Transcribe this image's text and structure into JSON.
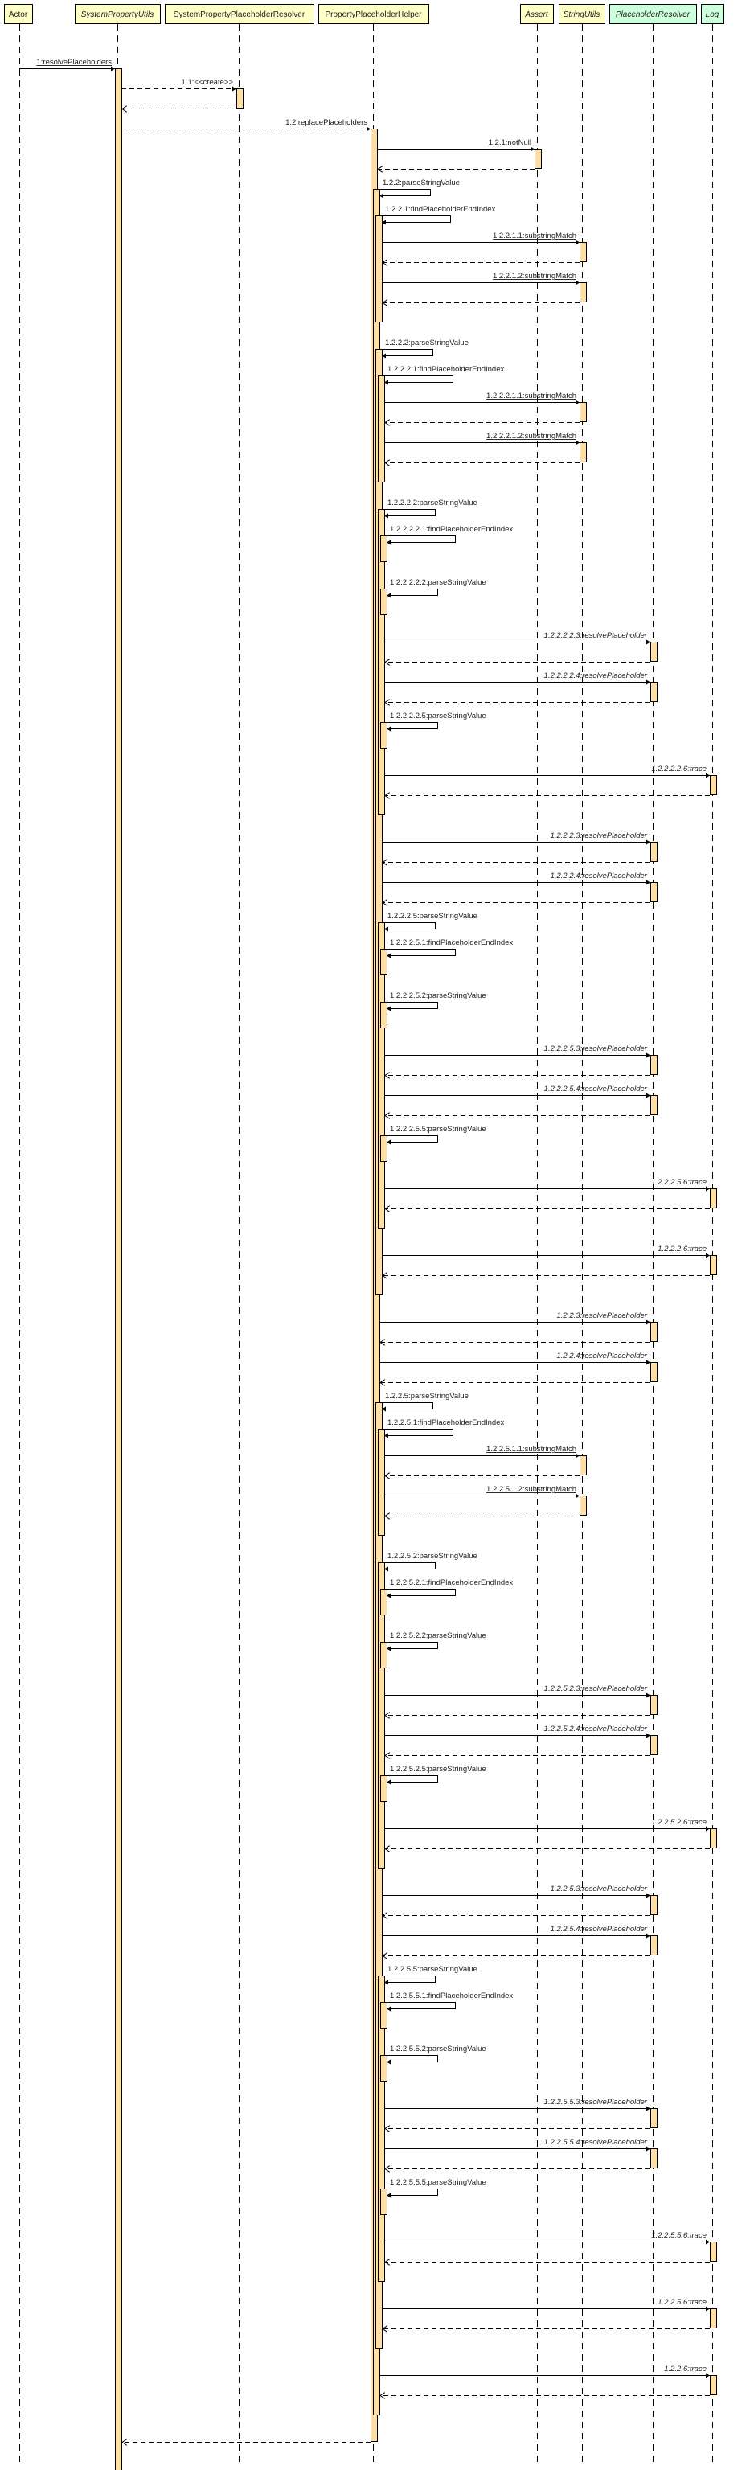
{
  "colors": {
    "class_box": "#FFFFC8",
    "interface_box": "#CCFFDC",
    "activation": "#FFDFA3",
    "line": "#000000"
  },
  "participants": [
    {
      "id": "actor",
      "name": "Actor",
      "italic": false,
      "kind": "class"
    },
    {
      "id": "spu",
      "name": "SystemPropertyUtils",
      "italic": true,
      "kind": "class"
    },
    {
      "id": "sppr",
      "name": "SystemPropertyPlaceholderResolver",
      "italic": false,
      "kind": "class"
    },
    {
      "id": "pph",
      "name": "PropertyPlaceholderHelper",
      "italic": false,
      "kind": "class"
    },
    {
      "id": "assert",
      "name": "Assert",
      "italic": true,
      "kind": "class"
    },
    {
      "id": "su",
      "name": "StringUtils",
      "italic": true,
      "kind": "class"
    },
    {
      "id": "pr",
      "name": "PlaceholderResolver",
      "italic": true,
      "kind": "interface"
    },
    {
      "id": "log",
      "name": "Log",
      "italic": true,
      "kind": "interface"
    }
  ],
  "messages": [
    {
      "label": "1:resolvePlaceholders",
      "from": "actor",
      "to": "spu",
      "style": "underline",
      "no_return": true,
      "children": [
        {
          "label": "1.1:<<create>>",
          "to": "sppr",
          "dashed": true
        },
        {
          "label": "1.2:replacePlaceholders",
          "to": "pph",
          "dashed": true,
          "children": [
            {
              "label": "1.2.1:notNull",
              "to": "assert",
              "style": "underline"
            },
            {
              "label": "1.2.2:parseStringValue",
              "kind": "self",
              "children": [
                {
                  "label": "1.2.2.1:findPlaceholderEndIndex",
                  "kind": "self",
                  "children": [
                    {
                      "label": "1.2.2.1.1:substringMatch",
                      "to": "su",
                      "style": "underline"
                    },
                    {
                      "label": "1.2.2.1.2:substringMatch",
                      "to": "su",
                      "style": "underline"
                    }
                  ]
                },
                {
                  "label": "1.2.2.2:parseStringValue",
                  "kind": "self",
                  "children": [
                    {
                      "label": "1.2.2.2.1:findPlaceholderEndIndex",
                      "kind": "self",
                      "children": [
                        {
                          "label": "1.2.2.2.1.1:substringMatch",
                          "to": "su",
                          "style": "underline"
                        },
                        {
                          "label": "1.2.2.2.1.2:substringMatch",
                          "to": "su",
                          "style": "underline"
                        }
                      ]
                    },
                    {
                      "label": "1.2.2.2.2:parseStringValue",
                      "kind": "self",
                      "children": [
                        {
                          "label": "1.2.2.2.2.1:findPlaceholderEndIndex",
                          "kind": "self"
                        },
                        {
                          "label": "1.2.2.2.2.2:parseStringValue",
                          "kind": "self"
                        },
                        {
                          "label": "1.2.2.2.2.3:resolvePlaceholder",
                          "to": "pr",
                          "style": "italic"
                        },
                        {
                          "label": "1.2.2.2.2.4:resolvePlaceholder",
                          "to": "pr",
                          "style": "italic"
                        },
                        {
                          "label": "1.2.2.2.2.5:parseStringValue",
                          "kind": "self"
                        },
                        {
                          "label": "1.2.2.2.2.6:trace",
                          "to": "log",
                          "style": "italic"
                        }
                      ]
                    },
                    {
                      "label": "1.2.2.2.3:resolvePlaceholder",
                      "to": "pr",
                      "style": "italic"
                    },
                    {
                      "label": "1.2.2.2.4:resolvePlaceholder",
                      "to": "pr",
                      "style": "italic"
                    },
                    {
                      "label": "1.2.2.2.5:parseStringValue",
                      "kind": "self",
                      "children": [
                        {
                          "label": "1.2.2.2.5.1:findPlaceholderEndIndex",
                          "kind": "self"
                        },
                        {
                          "label": "1.2.2.2.5.2:parseStringValue",
                          "kind": "self"
                        },
                        {
                          "label": "1.2.2.2.5.3:resolvePlaceholder",
                          "to": "pr",
                          "style": "italic"
                        },
                        {
                          "label": "1.2.2.2.5.4:resolvePlaceholder",
                          "to": "pr",
                          "style": "italic"
                        },
                        {
                          "label": "1.2.2.2.5.5:parseStringValue",
                          "kind": "self"
                        },
                        {
                          "label": "1.2.2.2.5.6:trace",
                          "to": "log",
                          "style": "italic"
                        }
                      ]
                    },
                    {
                      "label": "1.2.2.2.6:trace",
                      "to": "log",
                      "style": "italic"
                    }
                  ]
                },
                {
                  "label": "1.2.2.3:resolvePlaceholder",
                  "to": "pr",
                  "style": "italic"
                },
                {
                  "label": "1.2.2.4:resolvePlaceholder",
                  "to": "pr",
                  "style": "italic"
                },
                {
                  "label": "1.2.2.5:parseStringValue",
                  "kind": "self",
                  "children": [
                    {
                      "label": "1.2.2.5.1:findPlaceholderEndIndex",
                      "kind": "self",
                      "children": [
                        {
                          "label": "1.2.2.5.1.1:substringMatch",
                          "to": "su",
                          "style": "underline"
                        },
                        {
                          "label": "1.2.2.5.1.2:substringMatch",
                          "to": "su",
                          "style": "underline"
                        }
                      ]
                    },
                    {
                      "label": "1.2.2.5.2:parseStringValue",
                      "kind": "self",
                      "children": [
                        {
                          "label": "1.2.2.5.2.1:findPlaceholderEndIndex",
                          "kind": "self"
                        },
                        {
                          "label": "1.2.2.5.2.2:parseStringValue",
                          "kind": "self"
                        },
                        {
                          "label": "1.2.2.5.2.3:resolvePlaceholder",
                          "to": "pr",
                          "style": "italic"
                        },
                        {
                          "label": "1.2.2.5.2.4:resolvePlaceholder",
                          "to": "pr",
                          "style": "italic"
                        },
                        {
                          "label": "1.2.2.5.2.5:parseStringValue",
                          "kind": "self"
                        },
                        {
                          "label": "1.2.2.5.2.6:trace",
                          "to": "log",
                          "style": "italic"
                        }
                      ]
                    },
                    {
                      "label": "1.2.2.5.3:resolvePlaceholder",
                      "to": "pr",
                      "style": "italic"
                    },
                    {
                      "label": "1.2.2.5.4:resolvePlaceholder",
                      "to": "pr",
                      "style": "italic"
                    },
                    {
                      "label": "1.2.2.5.5:parseStringValue",
                      "kind": "self",
                      "children": [
                        {
                          "label": "1.2.2.5.5.1:findPlaceholderEndIndex",
                          "kind": "self"
                        },
                        {
                          "label": "1.2.2.5.5.2:parseStringValue",
                          "kind": "self"
                        },
                        {
                          "label": "1.2.2.5.5.3:resolvePlaceholder",
                          "to": "pr",
                          "style": "italic"
                        },
                        {
                          "label": "1.2.2.5.5.4:resolvePlaceholder",
                          "to": "pr",
                          "style": "italic"
                        },
                        {
                          "label": "1.2.2.5.5.5:parseStringValue",
                          "kind": "self"
                        },
                        {
                          "label": "1.2.2.5.5.6:trace",
                          "to": "log",
                          "style": "italic"
                        }
                      ]
                    },
                    {
                      "label": "1.2.2.5.6:trace",
                      "to": "log",
                      "style": "italic"
                    }
                  ]
                },
                {
                  "label": "1.2.2.6:trace",
                  "to": "log",
                  "style": "italic"
                }
              ]
            }
          ]
        }
      ]
    }
  ]
}
